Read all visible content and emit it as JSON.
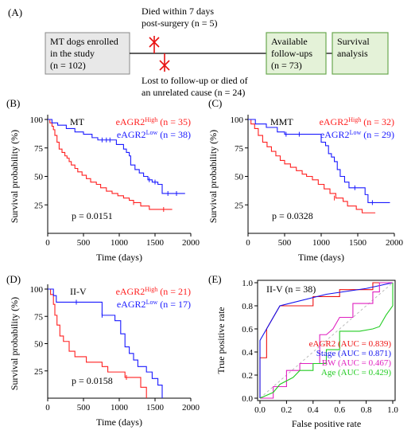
{
  "panel_a": {
    "label": "(A)",
    "box_enrolled_line1": "MT dogs enrolled",
    "box_enrolled_line2": "in the study",
    "box_enrolled_line3": "(n = 102)",
    "died_line1": "Died within 7 days",
    "died_line2": "post-surgery (n = 5)",
    "lost_line1": "Lost to follow-up or died of",
    "lost_line2": "an unrelated cause (n = 24)",
    "box_followup_line1": "Available",
    "box_followup_line2": "follow-ups",
    "box_followup_line3": "(n = 73)",
    "box_survival_line1": "Survival",
    "box_survival_line2": "analysis"
  },
  "colors": {
    "high": "#ff2020",
    "low": "#1a1aff",
    "box_gray": "#e8e8e8",
    "box_green": "#e4f2d8",
    "box_green_border": "#6aa84f",
    "stage": "#1010ee",
    "bw": "#e020c0",
    "age": "#22cc22",
    "eagr2": "#ee1010",
    "diag": "#bbbbbb"
  },
  "chart_data": [
    {
      "panel": "(B)",
      "type": "line",
      "subtitle": "MT",
      "xlabel": "Time (days)",
      "ylabel": "Survival probability (%)",
      "xlim": [
        0,
        2000
      ],
      "ylim": [
        0,
        100
      ],
      "xticks": [
        0,
        500,
        1000,
        1500,
        2000
      ],
      "yticks": [
        25,
        50,
        75,
        100
      ],
      "pvalue": "p = 0.0151",
      "series": [
        {
          "name": "eAGR2High (n = 35)",
          "label_base": "eAGR2",
          "label_sup": "High",
          "label_n": "(n = 35)",
          "color": "high",
          "points": [
            [
              0,
              100
            ],
            [
              30,
              97
            ],
            [
              60,
              94
            ],
            [
              80,
              91
            ],
            [
              100,
              86
            ],
            [
              130,
              80
            ],
            [
              160,
              74
            ],
            [
              200,
              71
            ],
            [
              240,
              68
            ],
            [
              270,
              66
            ],
            [
              300,
              63
            ],
            [
              330,
              60
            ],
            [
              380,
              57
            ],
            [
              420,
              54
            ],
            [
              480,
              51
            ],
            [
              540,
              48
            ],
            [
              600,
              45
            ],
            [
              680,
              43
            ],
            [
              740,
              40
            ],
            [
              820,
              37
            ],
            [
              900,
              35
            ],
            [
              980,
              33
            ],
            [
              1060,
              31
            ],
            [
              1140,
              29
            ],
            [
              1200,
              27
            ],
            [
              1300,
              24
            ],
            [
              1420,
              21
            ],
            [
              1740,
              21
            ]
          ],
          "censors": [
            [
              1200,
              27
            ],
            [
              1620,
              21
            ]
          ]
        },
        {
          "name": "eAGR2Low (n = 38)",
          "label_base": "eAGR2",
          "label_sup": "Low",
          "label_n": "(n = 38)",
          "color": "low",
          "points": [
            [
              0,
              100
            ],
            [
              60,
              97
            ],
            [
              140,
              95
            ],
            [
              260,
              92
            ],
            [
              380,
              89
            ],
            [
              500,
              87
            ],
            [
              620,
              84
            ],
            [
              700,
              82
            ],
            [
              900,
              82
            ],
            [
              960,
              78
            ],
            [
              1060,
              74
            ],
            [
              1100,
              71
            ],
            [
              1140,
              68
            ],
            [
              1160,
              60
            ],
            [
              1220,
              56
            ],
            [
              1280,
              53
            ],
            [
              1340,
              50
            ],
            [
              1400,
              47
            ],
            [
              1460,
              45
            ],
            [
              1540,
              43
            ],
            [
              1600,
              35
            ],
            [
              1920,
              35
            ]
          ],
          "censors": [
            [
              760,
              82
            ],
            [
              820,
              82
            ],
            [
              870,
              82
            ],
            [
              1420,
              47
            ],
            [
              1500,
              45
            ],
            [
              1680,
              35
            ],
            [
              1800,
              35
            ]
          ]
        }
      ]
    },
    {
      "panel": "(C)",
      "type": "line",
      "subtitle": "MMT",
      "xlabel": "Time (days)",
      "ylabel": "Survival probability (%)",
      "xlim": [
        0,
        2000
      ],
      "ylim": [
        0,
        100
      ],
      "xticks": [
        0,
        500,
        1000,
        1500,
        2000
      ],
      "yticks": [
        25,
        50,
        75,
        100
      ],
      "pvalue": "p = 0.0328",
      "series": [
        {
          "name": "eAGR2High (n = 32)",
          "label_base": "eAGR2",
          "label_sup": "High",
          "label_n": "(n = 32)",
          "color": "high",
          "points": [
            [
              0,
              100
            ],
            [
              40,
              96
            ],
            [
              90,
              92
            ],
            [
              140,
              86
            ],
            [
              200,
              80
            ],
            [
              260,
              76
            ],
            [
              320,
              72
            ],
            [
              380,
              68
            ],
            [
              440,
              64
            ],
            [
              500,
              61
            ],
            [
              580,
              58
            ],
            [
              660,
              55
            ],
            [
              740,
              52
            ],
            [
              800,
              50
            ],
            [
              880,
              47
            ],
            [
              960,
              43
            ],
            [
              1040,
              39
            ],
            [
              1120,
              35
            ],
            [
              1200,
              31
            ],
            [
              1300,
              28
            ],
            [
              1360,
              24
            ],
            [
              1480,
              21
            ],
            [
              1560,
              18
            ],
            [
              1740,
              18
            ]
          ],
          "censors": [
            [
              1180,
              31
            ]
          ]
        },
        {
          "name": "eAGR2Low (n = 29)",
          "label_base": "eAGR2",
          "label_sup": "Low",
          "label_n": "(n = 29)",
          "color": "low",
          "points": [
            [
              0,
              100
            ],
            [
              100,
              96
            ],
            [
              250,
              93
            ],
            [
              400,
              89
            ],
            [
              500,
              87
            ],
            [
              980,
              87
            ],
            [
              1000,
              80
            ],
            [
              1060,
              77
            ],
            [
              1100,
              70
            ],
            [
              1140,
              67
            ],
            [
              1180,
              63
            ],
            [
              1220,
              56
            ],
            [
              1260,
              50
            ],
            [
              1320,
              45
            ],
            [
              1380,
              40
            ],
            [
              1560,
              40
            ],
            [
              1600,
              34
            ],
            [
              1640,
              27
            ],
            [
              1940,
              27
            ]
          ],
          "censors": [
            [
              520,
              87
            ],
            [
              700,
              87
            ],
            [
              1460,
              40
            ],
            [
              1700,
              27
            ]
          ]
        }
      ]
    },
    {
      "panel": "(D)",
      "type": "line",
      "subtitle": "II-V",
      "xlabel": "Time (days)",
      "ylabel": "Survival probability (%)",
      "xlim": [
        0,
        2000
      ],
      "ylim": [
        0,
        100
      ],
      "xticks": [
        0,
        500,
        1000,
        1500,
        2000
      ],
      "yticks": [
        25,
        50,
        75,
        100
      ],
      "pvalue": "p = 0.0158",
      "series": [
        {
          "name": "eAGR2High (n = 21)",
          "label_base": "eAGR2",
          "label_sup": "High",
          "label_n": "(n = 21)",
          "color": "high",
          "points": [
            [
              0,
              100
            ],
            [
              40,
              95
            ],
            [
              80,
              86
            ],
            [
              100,
              76
            ],
            [
              130,
              67
            ],
            [
              170,
              57
            ],
            [
              220,
              52
            ],
            [
              300,
              43
            ],
            [
              380,
              38
            ],
            [
              480,
              38
            ],
            [
              540,
              33
            ],
            [
              700,
              33
            ],
            [
              760,
              29
            ],
            [
              840,
              24
            ],
            [
              960,
              24
            ],
            [
              1080,
              19
            ],
            [
              1200,
              19
            ],
            [
              1300,
              10
            ],
            [
              1380,
              0
            ]
          ],
          "censors": [
            [
              1100,
              19
            ]
          ]
        },
        {
          "name": "eAGR2Low (n = 17)",
          "label_base": "eAGR2",
          "label_sup": "Low",
          "label_n": "(n = 17)",
          "color": "low",
          "points": [
            [
              0,
              100
            ],
            [
              80,
              94
            ],
            [
              120,
              88
            ],
            [
              700,
              88
            ],
            [
              760,
              76
            ],
            [
              860,
              76
            ],
            [
              940,
              71
            ],
            [
              1020,
              59
            ],
            [
              1080,
              47
            ],
            [
              1140,
              41
            ],
            [
              1200,
              35
            ],
            [
              1260,
              29
            ],
            [
              1380,
              24
            ],
            [
              1460,
              18
            ],
            [
              1540,
              12
            ],
            [
              1600,
              0
            ]
          ],
          "censors": [
            [
              400,
              88
            ],
            [
              760,
              76
            ]
          ]
        }
      ]
    },
    {
      "panel": "(E)",
      "type": "line",
      "subtitle": "II-V (n = 38)",
      "xlabel": "False positive rate",
      "ylabel": "True positive rate",
      "xlim": [
        0,
        1
      ],
      "ylim": [
        0,
        1
      ],
      "xticks": [
        0.0,
        0.2,
        0.4,
        0.6,
        0.8,
        1.0
      ],
      "yticks": [
        0.0,
        0.2,
        0.4,
        0.6,
        0.8,
        1.0
      ],
      "series": [
        {
          "name": "eAGR2 (AUC = 0.839)",
          "color": "eagr2",
          "points": [
            [
              0,
              0
            ],
            [
              0,
              0.35
            ],
            [
              0.05,
              0.35
            ],
            [
              0.05,
              0.6
            ],
            [
              0.1,
              0.7
            ],
            [
              0.15,
              0.8
            ],
            [
              0.4,
              0.8
            ],
            [
              0.4,
              0.88
            ],
            [
              0.6,
              0.88
            ],
            [
              0.6,
              0.94
            ],
            [
              0.85,
              0.94
            ],
            [
              0.85,
              1
            ],
            [
              1,
              1
            ]
          ]
        },
        {
          "name": "Stage (AUC = 0.871)",
          "color": "stage",
          "points": [
            [
              0,
              0
            ],
            [
              0,
              0.5
            ],
            [
              0.05,
              0.6
            ],
            [
              0.15,
              0.8
            ],
            [
              0.5,
              0.9
            ],
            [
              0.8,
              0.95
            ],
            [
              1,
              1
            ]
          ]
        },
        {
          "name": "BW (AUC = 0.467)",
          "color": "bw",
          "points": [
            [
              0,
              0
            ],
            [
              0.1,
              0
            ],
            [
              0.1,
              0.1
            ],
            [
              0.2,
              0.1
            ],
            [
              0.2,
              0.24
            ],
            [
              0.3,
              0.24
            ],
            [
              0.3,
              0.3
            ],
            [
              0.45,
              0.3
            ],
            [
              0.45,
              0.55
            ],
            [
              0.5,
              0.55
            ],
            [
              0.55,
              0.6
            ],
            [
              0.6,
              0.7
            ],
            [
              0.7,
              0.7
            ],
            [
              0.7,
              0.82
            ],
            [
              0.85,
              0.82
            ],
            [
              0.85,
              0.92
            ],
            [
              0.9,
              0.92
            ],
            [
              0.9,
              1
            ],
            [
              1,
              1
            ]
          ]
        },
        {
          "name": "Age (AUC = 0.429)",
          "color": "age",
          "points": [
            [
              0,
              0
            ],
            [
              0.1,
              0.05
            ],
            [
              0.15,
              0.12
            ],
            [
              0.25,
              0.18
            ],
            [
              0.3,
              0.24
            ],
            [
              0.4,
              0.24
            ],
            [
              0.4,
              0.3
            ],
            [
              0.5,
              0.3
            ],
            [
              0.5,
              0.42
            ],
            [
              0.6,
              0.42
            ],
            [
              0.6,
              0.58
            ],
            [
              0.75,
              0.58
            ],
            [
              0.85,
              0.6
            ],
            [
              0.9,
              0.62
            ],
            [
              0.95,
              0.72
            ],
            [
              1,
              0.8
            ],
            [
              1,
              1
            ]
          ]
        }
      ]
    }
  ]
}
